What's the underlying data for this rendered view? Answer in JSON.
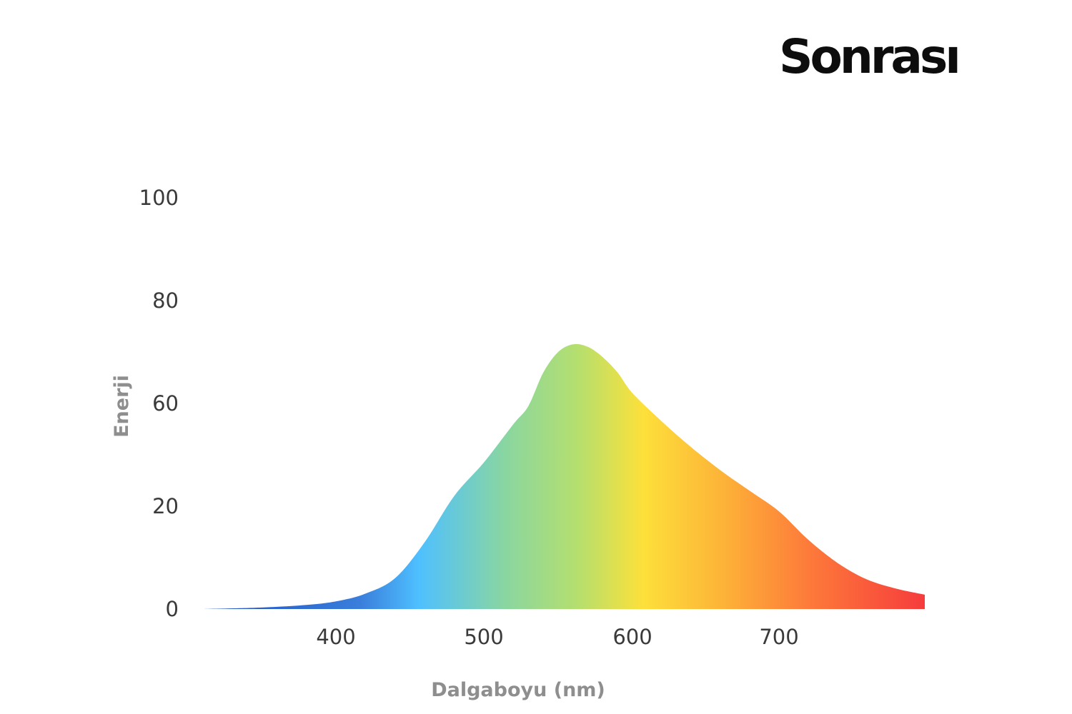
{
  "brand": {
    "logo_text": "Sonrası"
  },
  "chart_data": {
    "type": "area",
    "title": "",
    "xlabel": "Dalgaboyu (nm)",
    "ylabel": "Enerji",
    "xlim": [
      310,
      800
    ],
    "ylim": [
      0,
      100
    ],
    "y_ticks": [
      {
        "label": "0",
        "value": 0
      },
      {
        "label": "20",
        "value": 20
      },
      {
        "label": "60",
        "value": 60
      },
      {
        "label": "80",
        "value": 80
      },
      {
        "label": "100",
        "value": 100
      }
    ],
    "x_ticks": [
      {
        "label": "400",
        "value": 400
      },
      {
        "label": "500",
        "value": 500
      },
      {
        "label": "600",
        "value": 600
      },
      {
        "label": "700",
        "value": 700
      }
    ],
    "grid": false,
    "legend": "none",
    "series": [
      {
        "x": [
          310,
          350,
          380,
          400,
          420,
          440,
          460,
          480,
          500,
          520,
          530,
          540,
          550,
          560,
          570,
          580,
          590,
          600,
          620,
          640,
          660,
          680,
          700,
          720,
          740,
          760,
          780,
          800
        ],
        "y": [
          0,
          0.3,
          0.8,
          1.5,
          3,
          6,
          13,
          24,
          37,
          52,
          59,
          66,
          70,
          71.5,
          71,
          69,
          66,
          62,
          53,
          43,
          34,
          26,
          19,
          13.5,
          9,
          5.8,
          4,
          2.8
        ]
      }
    ],
    "colors": {
      "gradient_stops": [
        "#1f4fc0",
        "#3a7fdc",
        "#4fc0ff",
        "#8ad6a0",
        "#b5df6e",
        "#fde03a",
        "#fdb338",
        "#fd7a3a",
        "#f63c3c"
      ]
    }
  }
}
